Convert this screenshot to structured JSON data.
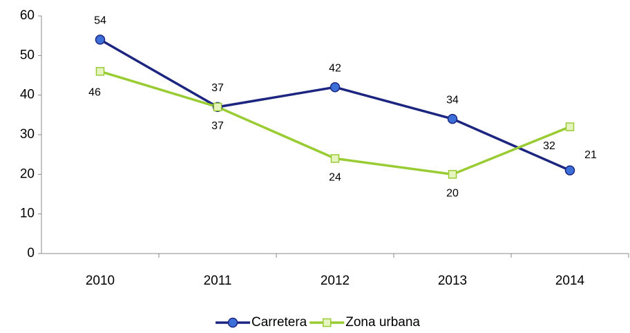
{
  "chart_data": {
    "type": "line",
    "categories": [
      "2010",
      "2011",
      "2012",
      "2013",
      "2014"
    ],
    "series": [
      {
        "name": "Carretera",
        "color": "#1c2580",
        "marker": "circle",
        "values": [
          54,
          37,
          42,
          34,
          21
        ]
      },
      {
        "name": "Zona urbana",
        "color": "#99cc33",
        "marker": "square",
        "values": [
          46,
          37,
          24,
          20,
          32
        ]
      }
    ],
    "ylim": [
      0,
      60
    ],
    "yticks": [
      0,
      10,
      20,
      30,
      40,
      50,
      60
    ],
    "grid": false,
    "data_labels": true,
    "legend": "bottom"
  }
}
